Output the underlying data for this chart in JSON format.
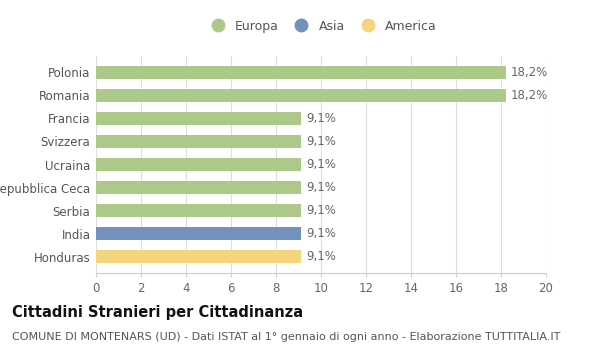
{
  "categories": [
    "Honduras",
    "India",
    "Serbia",
    "Repubblica Ceca",
    "Ucraina",
    "Svizzera",
    "Francia",
    "Romania",
    "Polonia"
  ],
  "values": [
    9.1,
    9.1,
    9.1,
    9.1,
    9.1,
    9.1,
    9.1,
    18.2,
    18.2
  ],
  "continents": [
    "America",
    "Asia",
    "Europa",
    "Europa",
    "Europa",
    "Europa",
    "Europa",
    "Europa",
    "Europa"
  ],
  "labels": [
    "9,1%",
    "9,1%",
    "9,1%",
    "9,1%",
    "9,1%",
    "9,1%",
    "9,1%",
    "18,2%",
    "18,2%"
  ],
  "colors": {
    "Europa": "#adc98a",
    "Asia": "#7292bb",
    "America": "#f5d47e"
  },
  "legend_entries": [
    "Europa",
    "Asia",
    "America"
  ],
  "legend_colors": [
    "#adc98a",
    "#7292bb",
    "#f5d47e"
  ],
  "title": "Cittadini Stranieri per Cittadinanza",
  "subtitle": "COMUNE DI MONTENARS (UD) - Dati ISTAT al 1° gennaio di ogni anno - Elaborazione TUTTITALIA.IT",
  "xlim": [
    0,
    20
  ],
  "xticks": [
    0,
    2,
    4,
    6,
    8,
    10,
    12,
    14,
    16,
    18,
    20
  ],
  "background_color": "#ffffff",
  "grid_color": "#dddddd",
  "bar_height": 0.55,
  "label_fontsize": 8.5,
  "title_fontsize": 10.5,
  "subtitle_fontsize": 8,
  "tick_fontsize": 8.5,
  "legend_fontsize": 9
}
